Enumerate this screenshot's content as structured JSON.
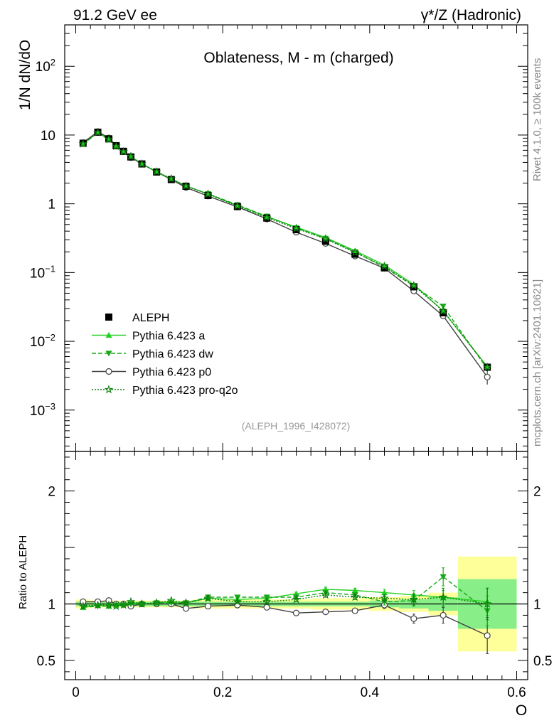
{
  "header": {
    "left": "91.2 GeV ee",
    "right": "γ*/Z (Hadronic)"
  },
  "side_labels": {
    "rivet": "Rivet 4.1.0, ≥ 100k events",
    "mcplots": "mcplots.cern.ch [arXiv:2401.10621]"
  },
  "chart_data": {
    "type": "line",
    "title": "Oblateness, M - m (charged)",
    "analysis_id": "(ALEPH_1996_I428072)",
    "xlabel": "O",
    "ylabel": "1/N  dN/dO",
    "ratio_ylabel": "Ratio to ALEPH",
    "xlim": [
      -0.015,
      0.615
    ],
    "ylim_log": [
      0.00025,
      400
    ],
    "ratio_ylim": [
      0.33,
      2.35
    ],
    "x_ticks": [
      {
        "value": 0,
        "label": "0"
      },
      {
        "value": 0.2,
        "label": "0.2"
      },
      {
        "value": 0.4,
        "label": "0.4"
      },
      {
        "value": 0.6,
        "label": "0.6"
      }
    ],
    "y_ticks": [
      {
        "value": 0.001,
        "mant": "10",
        "exp": "−3"
      },
      {
        "value": 0.01,
        "mant": "10",
        "exp": "−2"
      },
      {
        "value": 0.1,
        "mant": "10",
        "exp": "−1"
      },
      {
        "value": 1,
        "mant": "1",
        "exp": ""
      },
      {
        "value": 10,
        "mant": "10",
        "exp": ""
      },
      {
        "value": 100,
        "mant": "10",
        "exp": "2"
      }
    ],
    "ratio_ticks": [
      {
        "value": 0.5,
        "label": "0.5"
      },
      {
        "value": 1,
        "label": "1"
      },
      {
        "value": 2,
        "label": "2"
      }
    ],
    "bins": [
      [
        0.0,
        0.02
      ],
      [
        0.02,
        0.04
      ],
      [
        0.04,
        0.05
      ],
      [
        0.05,
        0.06
      ],
      [
        0.06,
        0.07
      ],
      [
        0.07,
        0.08
      ],
      [
        0.08,
        0.1
      ],
      [
        0.1,
        0.12
      ],
      [
        0.12,
        0.14
      ],
      [
        0.14,
        0.16
      ],
      [
        0.16,
        0.2
      ],
      [
        0.2,
        0.24
      ],
      [
        0.24,
        0.28
      ],
      [
        0.28,
        0.32
      ],
      [
        0.32,
        0.36
      ],
      [
        0.36,
        0.4
      ],
      [
        0.4,
        0.44
      ],
      [
        0.44,
        0.48
      ],
      [
        0.48,
        0.52
      ],
      [
        0.52,
        0.6
      ]
    ],
    "x": [
      0.01,
      0.03,
      0.045,
      0.055,
      0.065,
      0.075,
      0.09,
      0.11,
      0.13,
      0.15,
      0.18,
      0.22,
      0.26,
      0.3,
      0.34,
      0.38,
      0.42,
      0.46,
      0.5,
      0.56
    ],
    "data_values": [
      7.6,
      11.0,
      8.8,
      7.0,
      5.8,
      4.8,
      3.8,
      2.9,
      2.25,
      1.8,
      1.32,
      0.91,
      0.62,
      0.42,
      0.285,
      0.185,
      0.117,
      0.062,
      0.026,
      0.0042
    ],
    "band_outer": [
      0.04,
      0.03,
      0.03,
      0.03,
      0.03,
      0.03,
      0.03,
      0.03,
      0.03,
      0.03,
      0.04,
      0.04,
      0.04,
      0.04,
      0.05,
      0.05,
      0.06,
      0.07,
      0.1,
      0.42
    ],
    "band_inner": [
      0.02,
      0.02,
      0.02,
      0.02,
      0.02,
      0.02,
      0.02,
      0.02,
      0.02,
      0.02,
      0.02,
      0.02,
      0.02,
      0.02,
      0.02,
      0.02,
      0.03,
      0.04,
      0.06,
      0.22
    ],
    "series": [
      {
        "name": "ALEPH",
        "marker": "square",
        "color": "#000000",
        "dash": "",
        "line": false,
        "ratio": [
          1,
          1,
          1,
          1,
          1,
          1,
          1,
          1,
          1,
          1,
          1,
          1,
          1,
          1,
          1,
          1,
          1,
          1,
          1,
          1
        ],
        "ratio_err": []
      },
      {
        "name": "Pythia 6.423 a",
        "marker": "triangle-up",
        "color": "#22d022",
        "dash": "",
        "line": true,
        "ratio": [
          0.97,
          0.99,
          0.98,
          0.99,
          1.0,
          1.01,
          1.0,
          1.01,
          1.02,
          1.01,
          1.05,
          1.04,
          1.05,
          1.09,
          1.13,
          1.12,
          1.1,
          1.08,
          1.06,
          1.02
        ],
        "ratio_err": [
          0.005,
          0.005,
          0.005,
          0.005,
          0.005,
          0.005,
          0.005,
          0.005,
          0.005,
          0.01,
          0.01,
          0.01,
          0.01,
          0.015,
          0.02,
          0.02,
          0.03,
          0.04,
          0.06,
          0.12
        ]
      },
      {
        "name": "Pythia 6.423 dw",
        "marker": "triangle-down",
        "color": "#17a817",
        "dash": "6,3",
        "line": true,
        "ratio": [
          0.97,
          0.98,
          0.98,
          0.99,
          0.99,
          1.0,
          1.0,
          1.01,
          1.01,
          1.01,
          1.06,
          1.06,
          1.06,
          1.06,
          1.1,
          1.08,
          1.02,
          1.03,
          1.24,
          0.94
        ],
        "ratio_err": [
          0.005,
          0.005,
          0.005,
          0.005,
          0.005,
          0.005,
          0.005,
          0.005,
          0.005,
          0.01,
          0.01,
          0.01,
          0.01,
          0.015,
          0.02,
          0.02,
          0.03,
          0.05,
          0.08,
          0.13
        ]
      },
      {
        "name": "Pythia 6.423 p0",
        "marker": "circle",
        "color": "#404040",
        "dash": "",
        "line": true,
        "ratio": [
          1.02,
          1.02,
          1.03,
          1.0,
          1.0,
          0.98,
          1.0,
          1.0,
          1.0,
          0.96,
          0.98,
          0.99,
          0.97,
          0.92,
          0.93,
          0.94,
          0.99,
          0.87,
          0.9,
          0.72
        ],
        "ratio_err": [
          0.005,
          0.005,
          0.005,
          0.005,
          0.005,
          0.005,
          0.005,
          0.005,
          0.005,
          0.01,
          0.01,
          0.01,
          0.01,
          0.015,
          0.02,
          0.02,
          0.03,
          0.04,
          0.07,
          0.16
        ]
      },
      {
        "name": "Pythia 6.423 pro-q2o",
        "marker": "star",
        "color": "#0a7f0a",
        "dash": "2,2",
        "line": true,
        "ratio": [
          0.98,
          0.99,
          0.99,
          0.98,
          0.99,
          1.02,
          1.0,
          1.01,
          1.03,
          1.01,
          1.05,
          1.02,
          1.02,
          1.04,
          1.08,
          1.06,
          1.05,
          1.04,
          1.06,
          1.0
        ],
        "ratio_err": [
          0.005,
          0.005,
          0.005,
          0.005,
          0.005,
          0.005,
          0.005,
          0.005,
          0.005,
          0.01,
          0.01,
          0.01,
          0.01,
          0.015,
          0.02,
          0.02,
          0.03,
          0.05,
          0.08,
          0.14
        ]
      }
    ],
    "colors": {
      "band_outer": "#ffff99",
      "band_inner": "#88ee88",
      "analysis_id": "#999999",
      "side_text": "#888888"
    }
  }
}
